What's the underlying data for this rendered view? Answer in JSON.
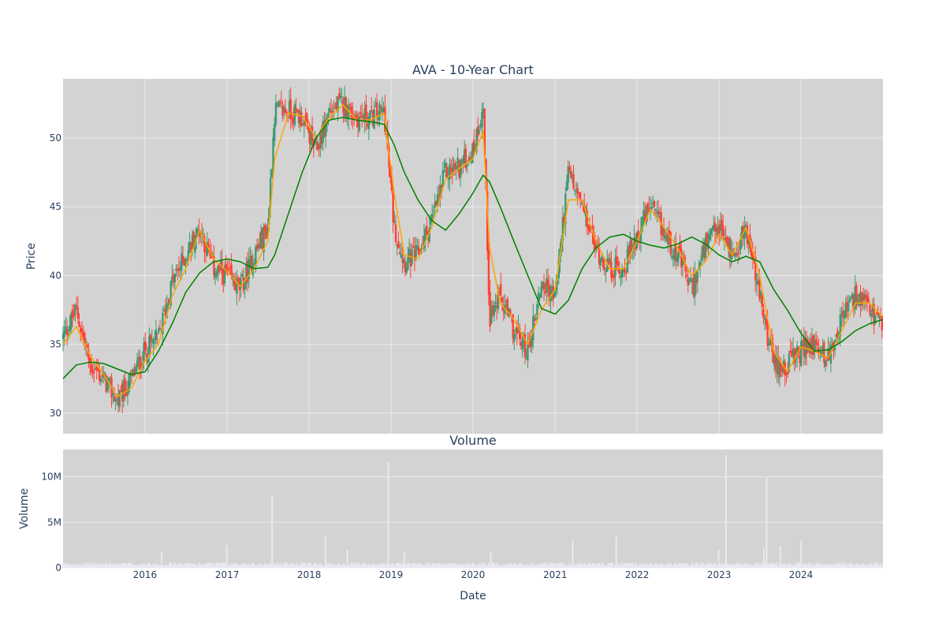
{
  "colors": {
    "plot_bg": "#d3d3d3",
    "grid": "#ebebeb",
    "text": "#2a3f5f",
    "up": "#3d9970",
    "down": "#ff4136",
    "ma_short": "#ffa500",
    "ma_long": "#008000",
    "volume_bar": "#e8e8f2"
  },
  "chart_data": [
    {
      "type": "candlestick",
      "title": "AVA - 10-Year Chart",
      "ylabel": "Price",
      "xlabel": "",
      "xlim": [
        "2015-01-01",
        "2024-12-31"
      ],
      "ylim": [
        28.5,
        54.3
      ],
      "yticks": [
        30,
        35,
        40,
        45,
        50
      ],
      "ytick_labels": [
        "30",
        "35",
        "40",
        "45",
        "50"
      ],
      "xticks": [
        "2016",
        "2017",
        "2018",
        "2019",
        "2020",
        "2021",
        "2022",
        "2023",
        "2024"
      ],
      "grid": true,
      "legend": "none",
      "series": [
        {
          "kind": "close",
          "x": [
            "2015-01-01",
            "2015-03-01",
            "2015-05-01",
            "2015-07-01",
            "2015-09-01",
            "2015-11-01",
            "2016-01-01",
            "2016-03-01",
            "2016-05-01",
            "2016-07-01",
            "2016-09-01",
            "2016-11-01",
            "2017-01-01",
            "2017-03-01",
            "2017-05-01",
            "2017-07-01",
            "2017-08-01",
            "2017-10-01",
            "2017-12-01",
            "2018-02-01",
            "2018-04-01",
            "2018-06-01",
            "2018-08-01",
            "2018-10-01",
            "2018-12-01",
            "2019-01-15",
            "2019-03-01",
            "2019-05-01",
            "2019-07-01",
            "2019-09-01",
            "2019-11-01",
            "2020-01-01",
            "2020-02-15",
            "2020-03-15",
            "2020-05-01",
            "2020-07-01",
            "2020-09-01",
            "2020-11-01",
            "2021-01-01",
            "2021-03-01",
            "2021-05-01",
            "2021-07-01",
            "2021-09-01",
            "2021-11-01",
            "2022-01-01",
            "2022-03-01",
            "2022-05-01",
            "2022-07-01",
            "2022-09-01",
            "2022-11-01",
            "2023-01-01",
            "2023-03-01",
            "2023-05-01",
            "2023-07-01",
            "2023-09-01",
            "2023-11-01",
            "2024-01-01",
            "2024-03-01",
            "2024-05-01",
            "2024-07-01",
            "2024-09-01",
            "2024-11-01",
            "2024-12-31"
          ],
          "values": [
            35.5,
            37.5,
            33.5,
            32.5,
            30.8,
            32.5,
            34.5,
            35.5,
            39.5,
            41.5,
            43.5,
            40.5,
            40.0,
            39.0,
            41.5,
            43.5,
            52.0,
            52.0,
            51.5,
            49.0,
            52.0,
            52.5,
            51.5,
            51.5,
            52.0,
            43.5,
            41.0,
            41.5,
            44.0,
            47.5,
            48.0,
            49.0,
            52.5,
            37.0,
            38.5,
            36.0,
            34.5,
            39.5,
            38.5,
            47.5,
            45.0,
            42.0,
            40.5,
            40.5,
            43.0,
            45.0,
            43.0,
            41.5,
            39.0,
            42.0,
            43.5,
            41.5,
            43.5,
            38.5,
            33.5,
            33.5,
            34.5,
            35.0,
            34.0,
            37.0,
            38.5,
            37.5,
            36.0
          ]
        },
        {
          "kind": "moving_average_short",
          "x": [
            "2015-01-01",
            "2015-03-01",
            "2015-05-01",
            "2015-07-01",
            "2015-09-01",
            "2015-11-01",
            "2016-01-01",
            "2016-03-01",
            "2016-05-01",
            "2016-07-01",
            "2016-09-01",
            "2016-11-01",
            "2017-01-01",
            "2017-03-01",
            "2017-05-01",
            "2017-07-01",
            "2017-08-01",
            "2017-10-01",
            "2017-12-01",
            "2018-02-01",
            "2018-04-01",
            "2018-06-01",
            "2018-08-01",
            "2018-10-01",
            "2018-12-01",
            "2019-01-15",
            "2019-03-01",
            "2019-05-01",
            "2019-07-01",
            "2019-09-01",
            "2019-11-01",
            "2020-01-01",
            "2020-02-15",
            "2020-03-15",
            "2020-05-01",
            "2020-07-01",
            "2020-09-01",
            "2020-11-01",
            "2021-01-01",
            "2021-03-01",
            "2021-05-01",
            "2021-07-01",
            "2021-09-01",
            "2021-11-01",
            "2022-01-01",
            "2022-03-01",
            "2022-05-01",
            "2022-07-01",
            "2022-09-01",
            "2022-11-01",
            "2023-01-01",
            "2023-03-01",
            "2023-05-01",
            "2023-07-01",
            "2023-09-01",
            "2023-11-01",
            "2024-01-01",
            "2024-03-01",
            "2024-05-01",
            "2024-07-01",
            "2024-09-01",
            "2024-11-01",
            "2024-12-31"
          ],
          "values": [
            35.0,
            36.3,
            34.2,
            32.8,
            31.2,
            31.8,
            33.8,
            35.0,
            38.5,
            40.5,
            43.3,
            41.2,
            40.3,
            39.2,
            40.5,
            42.5,
            48.5,
            51.8,
            51.6,
            50.0,
            51.5,
            52.4,
            51.3,
            51.3,
            51.8,
            46.0,
            41.5,
            41.2,
            43.5,
            47.0,
            47.8,
            48.5,
            50.5,
            42.0,
            38.0,
            36.8,
            35.0,
            37.5,
            39.0,
            45.5,
            45.5,
            42.5,
            40.5,
            40.5,
            42.5,
            44.8,
            43.5,
            42.0,
            40.0,
            41.0,
            43.0,
            41.5,
            43.5,
            40.0,
            34.5,
            33.0,
            34.8,
            34.5,
            34.0,
            36.0,
            38.0,
            38.0,
            37.0
          ]
        },
        {
          "kind": "moving_average_long",
          "x": [
            "2015-01-01",
            "2015-03-01",
            "2015-05-01",
            "2015-07-01",
            "2015-09-01",
            "2015-11-01",
            "2016-01-01",
            "2016-03-01",
            "2016-05-01",
            "2016-07-01",
            "2016-09-01",
            "2016-11-01",
            "2017-01-01",
            "2017-03-01",
            "2017-05-01",
            "2017-07-01",
            "2017-08-01",
            "2017-10-01",
            "2017-12-01",
            "2018-02-01",
            "2018-04-01",
            "2018-06-01",
            "2018-08-01",
            "2018-10-01",
            "2018-12-01",
            "2019-01-15",
            "2019-03-01",
            "2019-05-01",
            "2019-07-01",
            "2019-09-01",
            "2019-11-01",
            "2020-01-01",
            "2020-02-15",
            "2020-03-15",
            "2020-05-01",
            "2020-07-01",
            "2020-09-01",
            "2020-11-01",
            "2021-01-01",
            "2021-03-01",
            "2021-05-01",
            "2021-07-01",
            "2021-09-01",
            "2021-11-01",
            "2022-01-01",
            "2022-03-01",
            "2022-05-01",
            "2022-07-01",
            "2022-09-01",
            "2022-11-01",
            "2023-01-01",
            "2023-03-01",
            "2023-05-01",
            "2023-07-01",
            "2023-09-01",
            "2023-11-01",
            "2024-01-01",
            "2024-03-01",
            "2024-05-01",
            "2024-07-01",
            "2024-09-01",
            "2024-11-01",
            "2024-12-31"
          ],
          "values": [
            32.5,
            33.5,
            33.7,
            33.6,
            33.2,
            32.8,
            33.0,
            34.5,
            36.5,
            38.8,
            40.2,
            41.0,
            41.2,
            41.0,
            40.5,
            40.6,
            41.5,
            44.5,
            47.5,
            50.0,
            51.3,
            51.5,
            51.3,
            51.2,
            51.0,
            49.5,
            47.5,
            45.5,
            44.0,
            43.3,
            44.5,
            46.0,
            47.3,
            46.8,
            45.0,
            42.5,
            40.0,
            37.6,
            37.2,
            38.2,
            40.5,
            42.0,
            42.8,
            43.0,
            42.5,
            42.2,
            42.0,
            42.3,
            42.8,
            42.3,
            41.5,
            41.0,
            41.4,
            41.0,
            39.0,
            37.5,
            35.8,
            34.5,
            34.6,
            35.2,
            36.0,
            36.5,
            36.8
          ]
        }
      ]
    },
    {
      "type": "bar",
      "title": "Volume",
      "ylabel": "Volume",
      "xlabel": "Date",
      "xlim": [
        "2015-01-01",
        "2024-12-31"
      ],
      "ylim": [
        0,
        13000000
      ],
      "yticks": [
        0,
        5000000,
        10000000
      ],
      "ytick_labels": [
        "0",
        "5M",
        "10M"
      ],
      "xticks": [
        "2016",
        "2017",
        "2018",
        "2019",
        "2020",
        "2021",
        "2022",
        "2023",
        "2024"
      ],
      "grid": true,
      "base_volume": 400000,
      "spikes": [
        {
          "x": "2016-03-15",
          "value": 1800000
        },
        {
          "x": "2016-12-30",
          "value": 2500000
        },
        {
          "x": "2017-07-20",
          "value": 8000000
        },
        {
          "x": "2018-03-15",
          "value": 3500000
        },
        {
          "x": "2018-06-20",
          "value": 2000000
        },
        {
          "x": "2018-12-20",
          "value": 11600000
        },
        {
          "x": "2019-03-01",
          "value": 1800000
        },
        {
          "x": "2020-03-20",
          "value": 1800000
        },
        {
          "x": "2021-03-20",
          "value": 3000000
        },
        {
          "x": "2021-09-30",
          "value": 3400000
        },
        {
          "x": "2022-12-30",
          "value": 2000000
        },
        {
          "x": "2023-02-01",
          "value": 12400000
        },
        {
          "x": "2023-07-20",
          "value": 2200000
        },
        {
          "x": "2023-08-01",
          "value": 10000000
        },
        {
          "x": "2023-10-01",
          "value": 2400000
        },
        {
          "x": "2024-01-01",
          "value": 3000000
        }
      ]
    }
  ]
}
